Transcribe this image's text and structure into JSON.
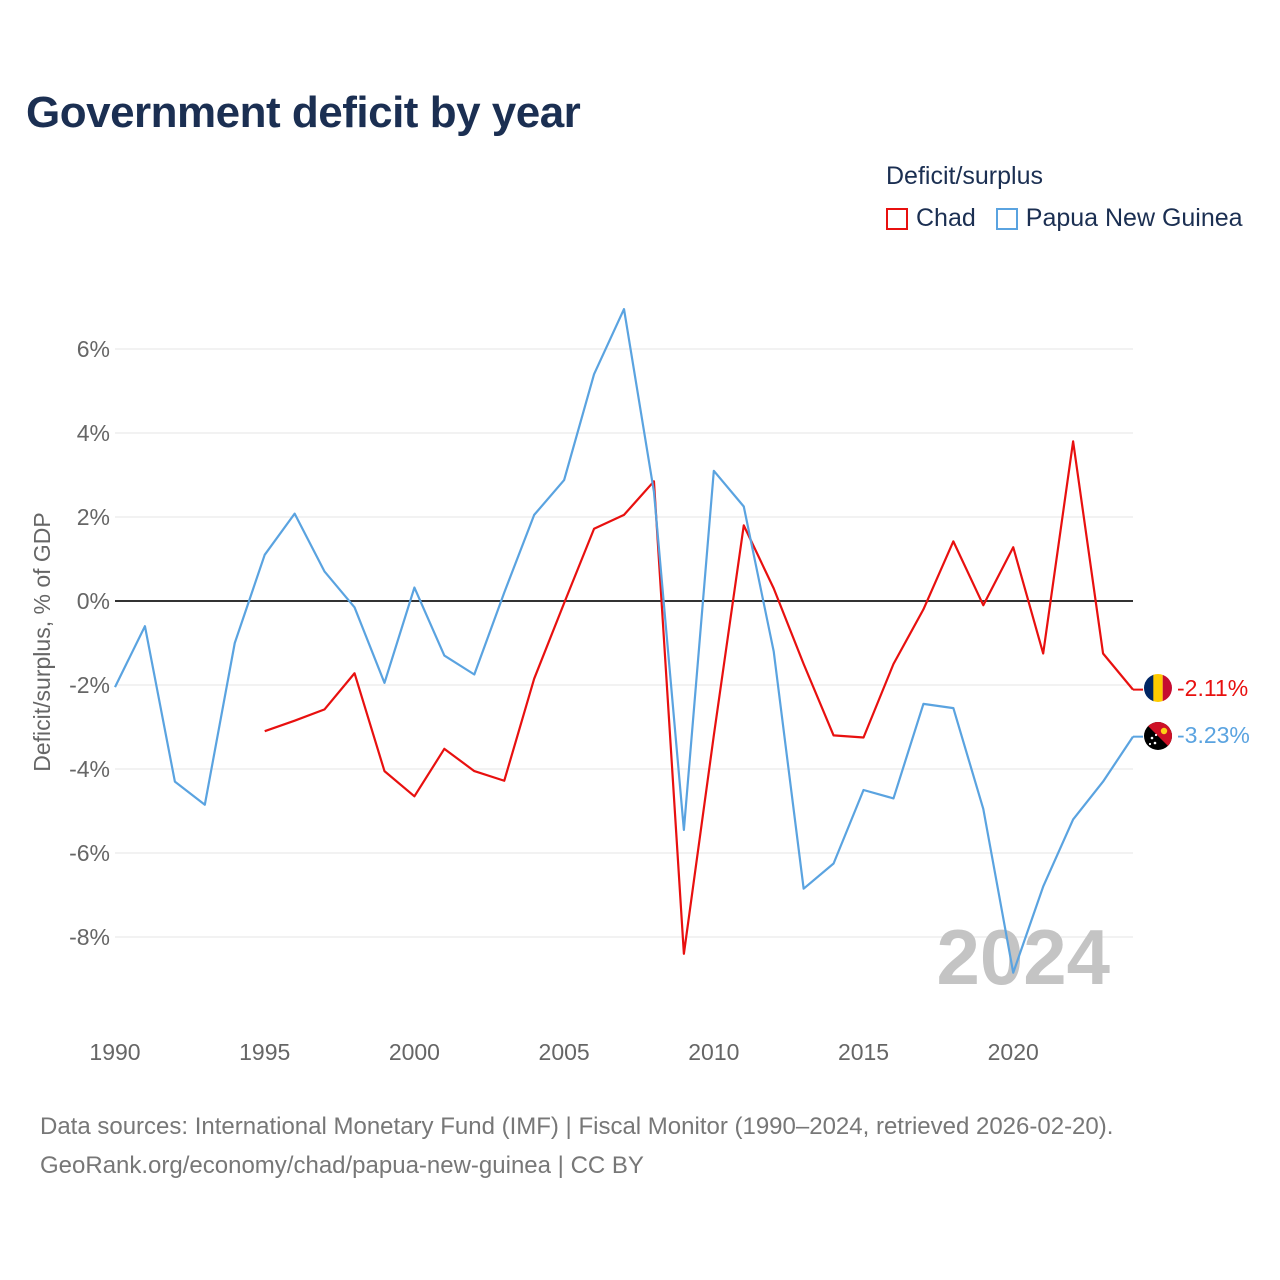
{
  "header": {
    "title": "Government deficit by year"
  },
  "legend": {
    "title": "Deficit/surplus",
    "items": [
      {
        "label": "Chad",
        "color": "#e8100f"
      },
      {
        "label": "Papua New Guinea",
        "color": "#5aa3e0"
      }
    ]
  },
  "watermark_year": "2024",
  "source": {
    "line1": "Data sources: International Monetary Fund (IMF) | Fiscal Monitor (1990–2024, retrieved 2026-02-20).",
    "line2": "GeoRank.org/economy/chad/papua-new-guinea | CC BY"
  },
  "chart_data": {
    "type": "line",
    "title": "Government deficit by year",
    "xlabel": "",
    "ylabel": "Deficit/surplus, % of GDP",
    "xlim": [
      1990,
      2024
    ],
    "ylim": [
      -10,
      7.5
    ],
    "x_ticks": [
      1990,
      1995,
      2000,
      2005,
      2010,
      2015,
      2020
    ],
    "y_ticks": [
      6,
      4,
      2,
      0,
      -2,
      -4,
      -6,
      -8
    ],
    "y_tick_labels": [
      "6%",
      "4%",
      "2%",
      "0%",
      "-2%",
      "-4%",
      "-6%",
      "-8%"
    ],
    "x_tick_labels": [
      "1990",
      "1995",
      "2000",
      "2005",
      "2010",
      "2015",
      "2020"
    ],
    "series": [
      {
        "name": "Chad",
        "color": "#e8100f",
        "end_label": "-2.11%",
        "points": [
          [
            1995,
            -3.1
          ],
          [
            1996,
            -2.85
          ],
          [
            1997,
            -2.58
          ],
          [
            1998,
            -1.72
          ],
          [
            1999,
            -4.05
          ],
          [
            2000,
            -4.65
          ],
          [
            2001,
            -3.52
          ],
          [
            2002,
            -4.05
          ],
          [
            2003,
            -4.28
          ],
          [
            2004,
            -1.85
          ],
          [
            2005,
            -0.05
          ],
          [
            2006,
            1.72
          ],
          [
            2007,
            2.05
          ],
          [
            2008,
            2.85
          ],
          [
            2009,
            -8.4
          ],
          [
            2010,
            -3.2
          ],
          [
            2011,
            1.8
          ],
          [
            2012,
            0.3
          ],
          [
            2013,
            -1.5
          ],
          [
            2014,
            -3.2
          ],
          [
            2015,
            -3.25
          ],
          [
            2016,
            -1.5
          ],
          [
            2017,
            -0.2
          ],
          [
            2018,
            1.42
          ],
          [
            2019,
            -0.1
          ],
          [
            2020,
            1.28
          ],
          [
            2021,
            -1.25
          ],
          [
            2022,
            3.8
          ],
          [
            2023,
            -1.25
          ],
          [
            2024,
            -2.11
          ]
        ]
      },
      {
        "name": "Papua New Guinea",
        "color": "#5aa3e0",
        "end_label": "-3.23%",
        "points": [
          [
            1990,
            -2.05
          ],
          [
            1991,
            -0.6
          ],
          [
            1992,
            -4.3
          ],
          [
            1993,
            -4.85
          ],
          [
            1994,
            -1.0
          ],
          [
            1995,
            1.1
          ],
          [
            1996,
            2.08
          ],
          [
            1997,
            0.7
          ],
          [
            1998,
            -0.15
          ],
          [
            1999,
            -1.95
          ],
          [
            2000,
            0.32
          ],
          [
            2001,
            -1.3
          ],
          [
            2002,
            -1.75
          ],
          [
            2003,
            0.2
          ],
          [
            2004,
            2.05
          ],
          [
            2005,
            2.88
          ],
          [
            2006,
            5.4
          ],
          [
            2007,
            6.95
          ],
          [
            2008,
            2.6
          ],
          [
            2009,
            -5.45
          ],
          [
            2010,
            3.1
          ],
          [
            2011,
            2.25
          ],
          [
            2012,
            -1.2
          ],
          [
            2013,
            -6.85
          ],
          [
            2014,
            -6.25
          ],
          [
            2015,
            -4.5
          ],
          [
            2016,
            -4.7
          ],
          [
            2017,
            -2.45
          ],
          [
            2018,
            -2.55
          ],
          [
            2019,
            -4.95
          ],
          [
            2020,
            -8.85
          ],
          [
            2021,
            -6.8
          ],
          [
            2022,
            -5.2
          ],
          [
            2023,
            -4.3
          ],
          [
            2024,
            -3.23
          ]
        ]
      }
    ]
  }
}
